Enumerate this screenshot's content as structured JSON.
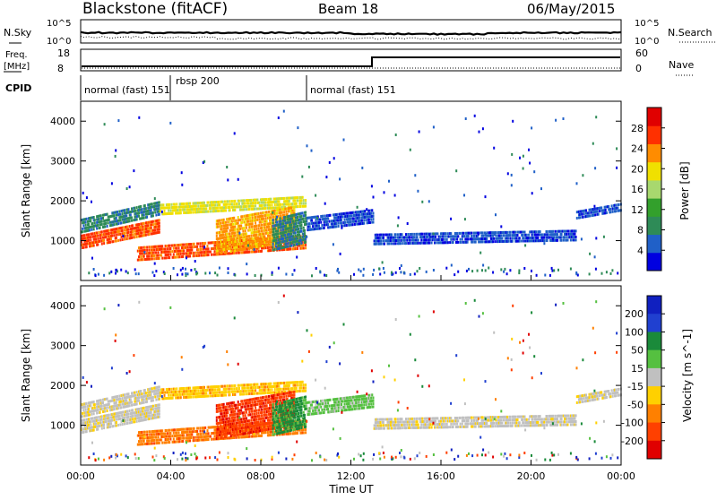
{
  "header": {
    "station": "Blackstone (fitACF)",
    "beam": "Beam 18",
    "date": "06/May/2015"
  },
  "top_panel": {
    "left_label": "N.Sky",
    "right_label": "N.Search",
    "left_ticks": [
      "10^5",
      "10^0"
    ],
    "right_ticks": [
      "10^5",
      "10^0"
    ]
  },
  "freq_panel": {
    "left_label_line1": "Freq.",
    "left_label_line2": "[MHz]",
    "right_label": "Nave",
    "left_ticks": [
      "18",
      "8"
    ],
    "right_ticks": [
      "60",
      "0"
    ]
  },
  "cpid": {
    "label": "CPID",
    "segments": [
      {
        "start_h": 0.0,
        "text": "normal (fast) 151"
      },
      {
        "start_h": 3.8,
        "text": "rbsp 200"
      },
      {
        "start_h": 10.0,
        "text": "normal (fast) 151"
      }
    ]
  },
  "colors": {
    "power_scale": [
      "#0000e0",
      "#2060c8",
      "#2e8b57",
      "#33a02c",
      "#a8d86e",
      "#f0e000",
      "#ff8c00",
      "#ff3000",
      "#e00000"
    ],
    "velocity_scale": [
      "#1020c0",
      "#2040d0",
      "#1a8a3a",
      "#55c040",
      "#c0c0c0",
      "#ffd000",
      "#ff8000",
      "#ff4000",
      "#e00000"
    ]
  },
  "chart_data": [
    {
      "type": "heatmap",
      "name": "Power",
      "ylabel": "Slant Range [km]",
      "yticks": [
        "1000",
        "2000",
        "3000",
        "4000"
      ],
      "ylim": [
        0,
        4500
      ],
      "colorbar_label": "Power [dB]",
      "colorbar_ticks": [
        "4",
        "8",
        "12",
        "16",
        "20",
        "24",
        "28"
      ],
      "zlim": [
        0,
        30
      ]
    },
    {
      "type": "heatmap",
      "name": "Velocity",
      "ylabel": "Slant Range [km]",
      "yticks": [
        "1000",
        "2000",
        "3000",
        "4000"
      ],
      "ylim": [
        0,
        4500
      ],
      "xlabel": "Time UT",
      "xticks": [
        "00:00",
        "04:00",
        "08:00",
        "12:00",
        "16:00",
        "20:00",
        "00:00"
      ],
      "xlim": [
        0,
        24
      ],
      "colorbar_label": "Velocity [m s^-1]",
      "colorbar_ticks": [
        "200",
        "100",
        "50",
        "15",
        "-15",
        "-50",
        "-100",
        "-200"
      ],
      "zlim": [
        -250,
        250
      ]
    }
  ]
}
